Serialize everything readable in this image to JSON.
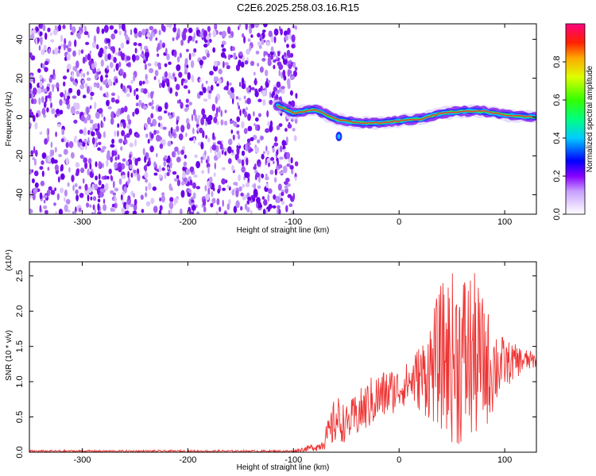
{
  "chart_data": [
    {
      "type": "heatmap",
      "title": "C2E6.2025.258.03.16.R15",
      "xlabel": "Height of straight line (km)",
      "ylabel": "Frequency (Hz)",
      "xlim": [
        -350,
        130
      ],
      "ylim": [
        -50,
        48
      ],
      "x_ticks": [
        -300,
        -200,
        -100,
        0,
        100
      ],
      "y_ticks": [
        -40,
        -20,
        0,
        20,
        40
      ],
      "description_values": {
        "noise_region_x": [
          -350,
          -97
        ],
        "signal_start_x": -115,
        "signal_ridge": [
          {
            "x": -115,
            "y": 6
          },
          {
            "x": -100,
            "y": 2
          },
          {
            "x": -80,
            "y": 4
          },
          {
            "x": -60,
            "y": -1
          },
          {
            "x": -40,
            "y": -3
          },
          {
            "x": -20,
            "y": -3
          },
          {
            "x": 0,
            "y": -2
          },
          {
            "x": 20,
            "y": -1
          },
          {
            "x": 40,
            "y": 2
          },
          {
            "x": 60,
            "y": 3
          },
          {
            "x": 80,
            "y": 3
          },
          {
            "x": 100,
            "y": 1
          },
          {
            "x": 130,
            "y": 0
          }
        ],
        "dropout": {
          "x": -57,
          "y": -10
        }
      },
      "colorbar": {
        "label": "Normalized spectral amplitude",
        "range": [
          0.0,
          1.0
        ],
        "ticks": [
          0.0,
          0.2,
          0.4,
          0.6,
          0.8
        ]
      }
    },
    {
      "type": "line",
      "xlabel": "Height of straight line (km)",
      "ylabel": "SNR (10 * v/v)",
      "y_multiplier": "(x10⁴)",
      "xlim": [
        -350,
        130
      ],
      "ylim": [
        0.0,
        2.7
      ],
      "x_ticks": [
        -300,
        -200,
        -100,
        0,
        100
      ],
      "y_ticks": [
        0.0,
        0.5,
        1.0,
        1.5,
        2.0,
        2.5
      ],
      "series": [
        {
          "name": "SNR",
          "color": "#ee3333",
          "envelope": [
            {
              "x": -350,
              "low": 0.0,
              "high": 0.03
            },
            {
              "x": -100,
              "low": 0.0,
              "high": 0.03
            },
            {
              "x": -75,
              "low": 0.02,
              "high": 0.15
            },
            {
              "x": -65,
              "low": 0.05,
              "high": 0.55
            },
            {
              "x": -60,
              "low": 0.1,
              "high": 0.85
            },
            {
              "x": -50,
              "low": 0.15,
              "high": 0.65
            },
            {
              "x": -40,
              "low": 0.2,
              "high": 0.85
            },
            {
              "x": -25,
              "low": 0.35,
              "high": 1.1
            },
            {
              "x": -10,
              "low": 0.5,
              "high": 1.2
            },
            {
              "x": 0,
              "low": 0.6,
              "high": 1.2
            },
            {
              "x": 10,
              "low": 0.7,
              "high": 1.3
            },
            {
              "x": 25,
              "low": 0.5,
              "high": 1.7
            },
            {
              "x": 40,
              "low": 0.3,
              "high": 2.4
            },
            {
              "x": 55,
              "low": 0.05,
              "high": 2.65
            },
            {
              "x": 70,
              "low": 0.1,
              "high": 2.6
            },
            {
              "x": 85,
              "low": 0.4,
              "high": 2.0
            },
            {
              "x": 100,
              "low": 0.9,
              "high": 1.6
            },
            {
              "x": 115,
              "low": 1.1,
              "high": 1.5
            },
            {
              "x": 130,
              "low": 1.2,
              "high": 1.4
            }
          ]
        }
      ]
    }
  ]
}
